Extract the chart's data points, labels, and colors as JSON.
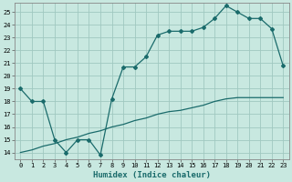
{
  "title": "",
  "xlabel": "Humidex (Indice chaleur)",
  "xlim": [
    -0.5,
    23.5
  ],
  "ylim": [
    13.5,
    25.7
  ],
  "xticks": [
    0,
    1,
    2,
    3,
    4,
    5,
    6,
    7,
    8,
    9,
    10,
    11,
    12,
    13,
    14,
    15,
    16,
    17,
    18,
    19,
    20,
    21,
    22,
    23
  ],
  "yticks": [
    14,
    15,
    16,
    17,
    18,
    19,
    20,
    21,
    22,
    23,
    24,
    25
  ],
  "bg_color": "#c8e8e0",
  "grid_color": "#a0c8c0",
  "line_color": "#1a6b6b",
  "line1_x": [
    0,
    1,
    2,
    3,
    4,
    5,
    6,
    7,
    8,
    9,
    10,
    11,
    12,
    13,
    14,
    15,
    16,
    17,
    18,
    19,
    20,
    21,
    22,
    23
  ],
  "line1_y": [
    19,
    18,
    18,
    15,
    14,
    15,
    15,
    13.8,
    18.2,
    20.7,
    20.7,
    21.5,
    23.2,
    23.5,
    23.5,
    23.5,
    23.8,
    24.5,
    25.5,
    25.0,
    24.5,
    24.5,
    23.7,
    20.8
  ],
  "line2_x": [
    0,
    1,
    2,
    3,
    4,
    5,
    6,
    7,
    8,
    9,
    10,
    11,
    12,
    13,
    14,
    15,
    16,
    17,
    18,
    19,
    20,
    21,
    22,
    23
  ],
  "line2_y": [
    14.0,
    14.2,
    14.5,
    14.7,
    15.0,
    15.2,
    15.5,
    15.7,
    16.0,
    16.2,
    16.5,
    16.7,
    17.0,
    17.2,
    17.3,
    17.5,
    17.7,
    18.0,
    18.2,
    18.3,
    18.3,
    18.3,
    18.3,
    18.3
  ],
  "marker_size": 2.0,
  "line_width": 0.9,
  "xlabel_fontsize": 6.5,
  "tick_fontsize": 5.0
}
